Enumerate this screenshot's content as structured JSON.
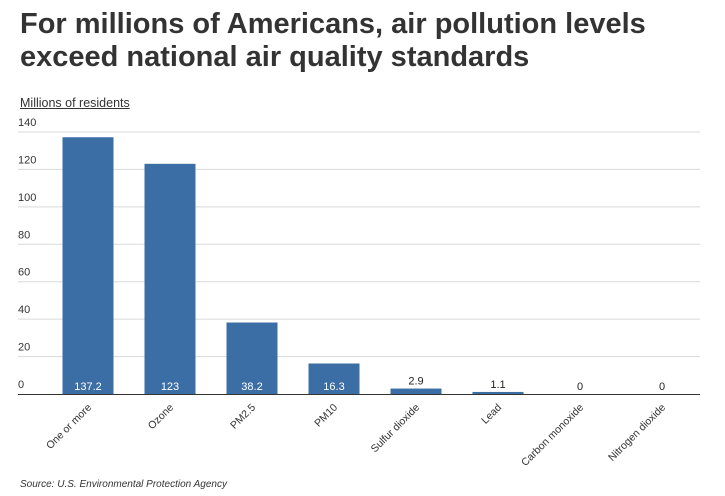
{
  "chart_data": {
    "type": "bar",
    "title": "For millions of Americans, air pollution levels exceed national air quality standards",
    "ylabel": "Millions of residents",
    "xlabel": "",
    "categories": [
      "One or more",
      "Ozone",
      "PM2.5",
      "PM10",
      "Sulfur dioxide",
      "Lead",
      "Carbon monoxide",
      "Nitrogen dioxide"
    ],
    "values": [
      137.2,
      123,
      38.2,
      16.3,
      2.9,
      1.1,
      0,
      0
    ],
    "data_labels": [
      "137.2",
      "123",
      "38.2",
      "16.3",
      "2.9",
      "1.1",
      "0",
      "0"
    ],
    "yticks": [
      0,
      20,
      40,
      60,
      80,
      100,
      120,
      140
    ],
    "ylim": [
      0,
      140
    ],
    "grid": true,
    "bar_color": "#3c6ea6",
    "gridline_color": "#d9d9d9",
    "source": "Source: U.S. Environmental Protection Agency"
  }
}
